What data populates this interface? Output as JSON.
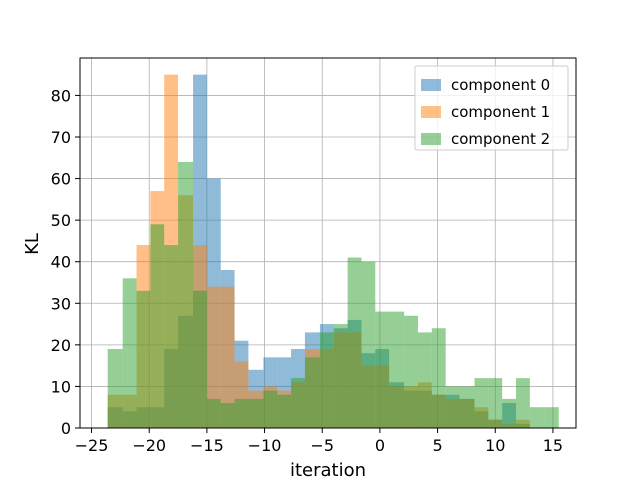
{
  "chart_data": {
    "type": "histogram",
    "xlabel": "iteration",
    "ylabel": "KL",
    "xlim": [
      -26,
      17
    ],
    "ylim": [
      0,
      89
    ],
    "xticks": [
      -25,
      -20,
      -15,
      -10,
      -5,
      0,
      5,
      10,
      15
    ],
    "yticks": [
      0,
      10,
      20,
      30,
      40,
      50,
      60,
      70,
      80
    ],
    "grid": true,
    "legend_position": "top-right",
    "series": [
      {
        "name": "component 0",
        "color": "#1f77b4",
        "opacity": 0.5,
        "bins": [
          {
            "x0": -23.6,
            "x1": -22.3,
            "count": 5
          },
          {
            "x0": -22.3,
            "x1": -21.1,
            "count": 4
          },
          {
            "x0": -21.1,
            "x1": -19.9,
            "count": 5
          },
          {
            "x0": -19.9,
            "x1": -18.7,
            "count": 5
          },
          {
            "x0": -18.7,
            "x1": -17.5,
            "count": 19
          },
          {
            "x0": -17.5,
            "x1": -16.2,
            "count": 27
          },
          {
            "x0": -16.2,
            "x1": -15.0,
            "count": 85
          },
          {
            "x0": -15.0,
            "x1": -13.8,
            "count": 60
          },
          {
            "x0": -13.8,
            "x1": -12.6,
            "count": 38
          },
          {
            "x0": -12.6,
            "x1": -11.4,
            "count": 21
          },
          {
            "x0": -11.4,
            "x1": -10.1,
            "count": 14
          },
          {
            "x0": -10.1,
            "x1": -8.9,
            "count": 17
          },
          {
            "x0": -8.9,
            "x1": -7.7,
            "count": 17
          },
          {
            "x0": -7.7,
            "x1": -6.5,
            "count": 19
          },
          {
            "x0": -6.5,
            "x1": -5.2,
            "count": 23
          },
          {
            "x0": -5.2,
            "x1": -4.0,
            "count": 25
          },
          {
            "x0": -4.0,
            "x1": -2.8,
            "count": 24
          },
          {
            "x0": -2.8,
            "x1": -1.6,
            "count": 26
          },
          {
            "x0": -1.6,
            "x1": -0.4,
            "count": 18
          },
          {
            "x0": -0.4,
            "x1": 0.8,
            "count": 19
          },
          {
            "x0": 0.8,
            "x1": 2.1,
            "count": 11
          },
          {
            "x0": 2.1,
            "x1": 3.3,
            "count": 9
          },
          {
            "x0": 3.3,
            "x1": 4.5,
            "count": 9
          },
          {
            "x0": 4.5,
            "x1": 5.7,
            "count": 8
          },
          {
            "x0": 5.7,
            "x1": 6.9,
            "count": 8
          },
          {
            "x0": 6.9,
            "x1": 8.2,
            "count": 7
          },
          {
            "x0": 8.2,
            "x1": 9.4,
            "count": 4
          },
          {
            "x0": 9.4,
            "x1": 10.6,
            "count": 2
          },
          {
            "x0": 10.6,
            "x1": 11.8,
            "count": 6
          },
          {
            "x0": 11.8,
            "x1": 13.0,
            "count": 1
          }
        ]
      },
      {
        "name": "component 1",
        "color": "#ff7f0e",
        "opacity": 0.5,
        "bins": [
          {
            "x0": -23.6,
            "x1": -22.3,
            "count": 8
          },
          {
            "x0": -22.3,
            "x1": -21.1,
            "count": 8
          },
          {
            "x0": -21.1,
            "x1": -19.9,
            "count": 44
          },
          {
            "x0": -19.9,
            "x1": -18.7,
            "count": 57
          },
          {
            "x0": -18.7,
            "x1": -17.5,
            "count": 85
          },
          {
            "x0": -17.5,
            "x1": -16.2,
            "count": 56
          },
          {
            "x0": -16.2,
            "x1": -15.0,
            "count": 44
          },
          {
            "x0": -15.0,
            "x1": -13.8,
            "count": 34
          },
          {
            "x0": -13.8,
            "x1": -12.6,
            "count": 34
          },
          {
            "x0": -12.6,
            "x1": -11.4,
            "count": 16
          },
          {
            "x0": -11.4,
            "x1": -10.1,
            "count": 9
          },
          {
            "x0": -10.1,
            "x1": -8.9,
            "count": 10
          },
          {
            "x0": -8.9,
            "x1": -7.7,
            "count": 9
          },
          {
            "x0": -7.7,
            "x1": -6.5,
            "count": 11
          },
          {
            "x0": -6.5,
            "x1": -5.2,
            "count": 19
          },
          {
            "x0": -5.2,
            "x1": -4.0,
            "count": 19
          },
          {
            "x0": -4.0,
            "x1": -2.8,
            "count": 23
          },
          {
            "x0": -2.8,
            "x1": -1.6,
            "count": 23
          },
          {
            "x0": -1.6,
            "x1": -0.4,
            "count": 15
          },
          {
            "x0": -0.4,
            "x1": 0.8,
            "count": 15
          },
          {
            "x0": 0.8,
            "x1": 2.1,
            "count": 10
          },
          {
            "x0": 2.1,
            "x1": 3.3,
            "count": 10
          },
          {
            "x0": 3.3,
            "x1": 4.5,
            "count": 11
          },
          {
            "x0": 4.5,
            "x1": 5.7,
            "count": 8
          },
          {
            "x0": 5.7,
            "x1": 6.9,
            "count": 7
          },
          {
            "x0": 6.9,
            "x1": 8.2,
            "count": 7
          },
          {
            "x0": 8.2,
            "x1": 9.4,
            "count": 5
          },
          {
            "x0": 9.4,
            "x1": 10.6,
            "count": 2
          },
          {
            "x0": 10.6,
            "x1": 11.8,
            "count": 1
          },
          {
            "x0": 11.8,
            "x1": 13.0,
            "count": 2
          }
        ]
      },
      {
        "name": "component 2",
        "color": "#2ca02c",
        "opacity": 0.5,
        "bins": [
          {
            "x0": -23.6,
            "x1": -22.3,
            "count": 19
          },
          {
            "x0": -22.3,
            "x1": -21.1,
            "count": 36
          },
          {
            "x0": -21.1,
            "x1": -19.9,
            "count": 33
          },
          {
            "x0": -19.9,
            "x1": -18.7,
            "count": 49
          },
          {
            "x0": -18.7,
            "x1": -17.5,
            "count": 44
          },
          {
            "x0": -17.5,
            "x1": -16.2,
            "count": 64
          },
          {
            "x0": -16.2,
            "x1": -15.0,
            "count": 33
          },
          {
            "x0": -15.0,
            "x1": -13.8,
            "count": 7
          },
          {
            "x0": -13.8,
            "x1": -12.6,
            "count": 6
          },
          {
            "x0": -12.6,
            "x1": -11.4,
            "count": 7
          },
          {
            "x0": -11.4,
            "x1": -10.1,
            "count": 7
          },
          {
            "x0": -10.1,
            "x1": -8.9,
            "count": 9
          },
          {
            "x0": -8.9,
            "x1": -7.7,
            "count": 8
          },
          {
            "x0": -7.7,
            "x1": -6.5,
            "count": 12
          },
          {
            "x0": -6.5,
            "x1": -5.2,
            "count": 17
          },
          {
            "x0": -5.2,
            "x1": -4.0,
            "count": 23
          },
          {
            "x0": -4.0,
            "x1": -2.8,
            "count": 25
          },
          {
            "x0": -2.8,
            "x1": -1.6,
            "count": 41
          },
          {
            "x0": -1.6,
            "x1": -0.4,
            "count": 40
          },
          {
            "x0": -0.4,
            "x1": 0.8,
            "count": 28
          },
          {
            "x0": 0.8,
            "x1": 2.1,
            "count": 28
          },
          {
            "x0": 2.1,
            "x1": 3.3,
            "count": 27
          },
          {
            "x0": 3.3,
            "x1": 4.5,
            "count": 23
          },
          {
            "x0": 4.5,
            "x1": 5.7,
            "count": 24
          },
          {
            "x0": 5.7,
            "x1": 6.9,
            "count": 10
          },
          {
            "x0": 6.9,
            "x1": 8.2,
            "count": 10
          },
          {
            "x0": 8.2,
            "x1": 9.4,
            "count": 12
          },
          {
            "x0": 9.4,
            "x1": 10.6,
            "count": 12
          },
          {
            "x0": 10.6,
            "x1": 11.8,
            "count": 7
          },
          {
            "x0": 11.8,
            "x1": 13.0,
            "count": 12
          },
          {
            "x0": 13.0,
            "x1": 14.3,
            "count": 5
          },
          {
            "x0": 14.3,
            "x1": 15.5,
            "count": 5
          }
        ]
      }
    ]
  }
}
